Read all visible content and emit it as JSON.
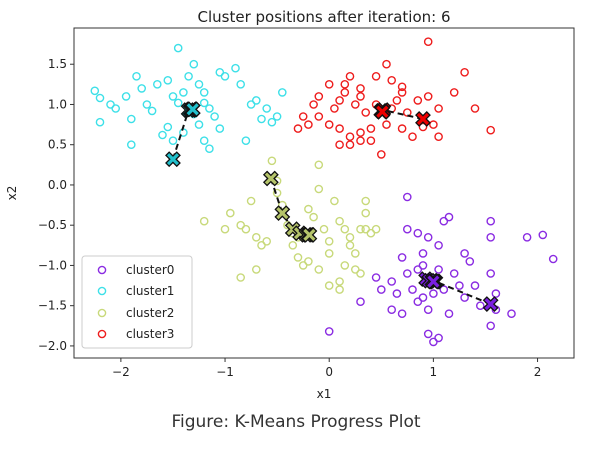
{
  "caption": "Figure: K-Means Progress Plot",
  "chart_data": {
    "type": "scatter",
    "title": "Cluster positions after iteration: 6",
    "xlabel": "x1",
    "ylabel": "x2",
    "xlim": [
      -2.45,
      2.35
    ],
    "ylim": [
      -2.15,
      1.95
    ],
    "xticks": [
      -2,
      -1,
      0,
      1,
      2
    ],
    "yticks": [
      -2.0,
      -1.5,
      -1.0,
      -0.5,
      0.0,
      0.5,
      1.0,
      1.5
    ],
    "xtick_labels": [
      "−2",
      "−1",
      "0",
      "1",
      "2"
    ],
    "ytick_labels": [
      "−2.0",
      "−1.5",
      "−1.0",
      "−0.5",
      "0.0",
      "0.5",
      "1.0",
      "1.5"
    ],
    "grid": false,
    "legend_position": "lower-left",
    "series": [
      {
        "name": "cluster0",
        "color": "#8a2be2",
        "center_fill": "#7a1fe0",
        "points": [
          [
            0.75,
            -0.55
          ],
          [
            0.85,
            -0.6
          ],
          [
            0.95,
            -0.65
          ],
          [
            1.15,
            -0.4
          ],
          [
            1.1,
            -0.45
          ],
          [
            1.55,
            -0.45
          ],
          [
            0.7,
            -0.9
          ],
          [
            0.9,
            -0.85
          ],
          [
            1.05,
            -0.75
          ],
          [
            1.3,
            -0.85
          ],
          [
            1.35,
            -0.95
          ],
          [
            1.55,
            -0.65
          ],
          [
            1.9,
            -0.65
          ],
          [
            2.05,
            -0.62
          ],
          [
            2.15,
            -0.92
          ],
          [
            0.45,
            -1.15
          ],
          [
            0.6,
            -1.2
          ],
          [
            0.75,
            -1.1
          ],
          [
            0.85,
            -1.05
          ],
          [
            0.9,
            -1.0
          ],
          [
            0.95,
            -1.15
          ],
          [
            1.05,
            -1.05
          ],
          [
            1.2,
            -1.1
          ],
          [
            1.25,
            -1.25
          ],
          [
            1.4,
            -1.25
          ],
          [
            1.55,
            -1.1
          ],
          [
            1.6,
            -1.35
          ],
          [
            0.5,
            -1.3
          ],
          [
            0.65,
            -1.35
          ],
          [
            0.8,
            -1.3
          ],
          [
            0.85,
            -1.45
          ],
          [
            0.9,
            -1.4
          ],
          [
            1.0,
            -1.35
          ],
          [
            1.1,
            -1.3
          ],
          [
            1.3,
            -1.4
          ],
          [
            1.45,
            -1.5
          ],
          [
            1.6,
            -1.55
          ],
          [
            1.75,
            -1.6
          ],
          [
            0.3,
            -1.45
          ],
          [
            0.6,
            -1.55
          ],
          [
            0.7,
            -1.6
          ],
          [
            0.95,
            -1.55
          ],
          [
            1.15,
            -1.6
          ],
          [
            1.55,
            -1.75
          ],
          [
            0.95,
            -1.85
          ],
          [
            1.05,
            -1.9
          ],
          [
            0.0,
            -1.82
          ],
          [
            0.75,
            -0.15
          ],
          [
            1.0,
            -1.95
          ]
        ],
        "centers": [
          [
            1.55,
            -1.48
          ],
          [
            1.02,
            -1.2
          ],
          [
            0.93,
            -1.17
          ],
          [
            0.96,
            -1.19
          ],
          [
            0.99,
            -1.19
          ],
          [
            1.01,
            -1.2
          ],
          [
            1.0,
            -1.2
          ]
        ]
      },
      {
        "name": "cluster1",
        "color": "#3de0e8",
        "center_fill": "#22c0cc",
        "points": [
          [
            -2.25,
            1.17
          ],
          [
            -2.2,
            1.08
          ],
          [
            -2.1,
            1.0
          ],
          [
            -2.2,
            0.78
          ],
          [
            -2.05,
            0.95
          ],
          [
            -1.95,
            1.1
          ],
          [
            -1.9,
            0.82
          ],
          [
            -1.85,
            1.35
          ],
          [
            -1.8,
            1.2
          ],
          [
            -1.75,
            1.0
          ],
          [
            -1.7,
            0.92
          ],
          [
            -1.65,
            1.25
          ],
          [
            -1.55,
            1.3
          ],
          [
            -1.5,
            1.1
          ],
          [
            -1.45,
            1.02
          ],
          [
            -1.4,
            1.15
          ],
          [
            -1.35,
            1.35
          ],
          [
            -1.45,
            1.7
          ],
          [
            -1.3,
            1.5
          ],
          [
            -1.25,
            1.25
          ],
          [
            -1.2,
            1.15
          ],
          [
            -1.15,
            0.95
          ],
          [
            -1.1,
            0.85
          ],
          [
            -1.05,
            1.4
          ],
          [
            -1.2,
            1.02
          ],
          [
            -1.3,
            0.88
          ],
          [
            -1.25,
            0.75
          ],
          [
            -1.4,
            0.65
          ],
          [
            -1.55,
            0.72
          ],
          [
            -1.6,
            0.62
          ],
          [
            -1.9,
            0.5
          ],
          [
            -1.5,
            0.55
          ],
          [
            -1.2,
            0.55
          ],
          [
            -1.15,
            0.45
          ],
          [
            -1.0,
            1.35
          ],
          [
            -0.9,
            1.45
          ],
          [
            -0.85,
            1.25
          ],
          [
            -0.75,
            1.0
          ],
          [
            -0.7,
            1.05
          ],
          [
            -0.65,
            0.82
          ],
          [
            -0.55,
            0.78
          ],
          [
            -0.45,
            1.15
          ],
          [
            -0.5,
            0.85
          ],
          [
            -0.6,
            0.95
          ],
          [
            -1.05,
            0.7
          ],
          [
            -0.8,
            0.55
          ]
        ],
        "centers": [
          [
            -1.5,
            0.32
          ],
          [
            -1.35,
            0.93
          ],
          [
            -1.33,
            0.93
          ],
          [
            -1.32,
            0.94
          ],
          [
            -1.32,
            0.94
          ],
          [
            -1.31,
            0.94
          ],
          [
            -1.31,
            0.94
          ]
        ]
      },
      {
        "name": "cluster2",
        "color": "#c8d97a",
        "center_fill": "#b5c46a",
        "points": [
          [
            -1.2,
            -0.45
          ],
          [
            -0.95,
            -0.35
          ],
          [
            -0.85,
            -0.5
          ],
          [
            -0.8,
            -0.55
          ],
          [
            -0.75,
            -0.2
          ],
          [
            -0.7,
            -0.65
          ],
          [
            -0.65,
            -0.75
          ],
          [
            -0.6,
            -0.7
          ],
          [
            -0.55,
            0.3
          ],
          [
            -0.5,
            0.05
          ],
          [
            -0.5,
            -0.1
          ],
          [
            -0.45,
            -0.25
          ],
          [
            -0.4,
            -0.5
          ],
          [
            -0.35,
            -0.6
          ],
          [
            -0.35,
            -0.75
          ],
          [
            -0.3,
            -0.9
          ],
          [
            -0.25,
            -1.0
          ],
          [
            -0.2,
            -0.3
          ],
          [
            -0.15,
            -0.4
          ],
          [
            -0.1,
            0.25
          ],
          [
            -0.1,
            -0.05
          ],
          [
            -0.05,
            -0.55
          ],
          [
            0.0,
            -0.7
          ],
          [
            0.0,
            -0.85
          ],
          [
            0.05,
            -0.2
          ],
          [
            0.1,
            -0.45
          ],
          [
            0.15,
            -0.55
          ],
          [
            0.2,
            -0.65
          ],
          [
            0.2,
            -0.75
          ],
          [
            0.25,
            -0.85
          ],
          [
            0.3,
            -0.55
          ],
          [
            0.35,
            -0.55
          ],
          [
            0.35,
            -0.35
          ],
          [
            0.4,
            -0.6
          ],
          [
            0.45,
            -0.55
          ],
          [
            0.25,
            -1.05
          ],
          [
            0.3,
            -1.1
          ],
          [
            0.15,
            -1.0
          ],
          [
            0.1,
            -1.3
          ],
          [
            0.1,
            -1.2
          ],
          [
            0.0,
            -1.25
          ],
          [
            -0.1,
            -1.05
          ],
          [
            -0.2,
            -0.95
          ],
          [
            -0.85,
            -1.15
          ],
          [
            -0.7,
            -1.05
          ],
          [
            -1.0,
            -0.55
          ],
          [
            -0.3,
            -0.65
          ],
          [
            0.35,
            -0.2
          ]
        ],
        "centers": [
          [
            -0.56,
            0.08
          ],
          [
            -0.45,
            -0.35
          ],
          [
            -0.35,
            -0.55
          ],
          [
            -0.28,
            -0.6
          ],
          [
            -0.22,
            -0.62
          ],
          [
            -0.2,
            -0.62
          ],
          [
            -0.19,
            -0.62
          ]
        ]
      },
      {
        "name": "cluster3",
        "color": "#ee1c1c",
        "center_fill": "#ee0000",
        "points": [
          [
            0.95,
            1.78
          ],
          [
            0.2,
            1.35
          ],
          [
            0.15,
            1.25
          ],
          [
            0.0,
            1.25
          ],
          [
            0.45,
            1.35
          ],
          [
            0.55,
            1.5
          ],
          [
            0.6,
            1.3
          ],
          [
            0.7,
            1.15
          ],
          [
            0.65,
            1.05
          ],
          [
            0.3,
            1.1
          ],
          [
            0.25,
            1.0
          ],
          [
            0.1,
            1.05
          ],
          [
            0.05,
            0.95
          ],
          [
            -0.15,
            1.0
          ],
          [
            -0.1,
            0.85
          ],
          [
            -0.2,
            0.75
          ],
          [
            -0.3,
            0.7
          ],
          [
            -0.25,
            0.85
          ],
          [
            -0.1,
            1.1
          ],
          [
            0.0,
            0.75
          ],
          [
            0.1,
            0.7
          ],
          [
            0.2,
            0.6
          ],
          [
            0.3,
            0.65
          ],
          [
            0.4,
            0.7
          ],
          [
            0.1,
            0.5
          ],
          [
            0.2,
            0.5
          ],
          [
            0.3,
            0.55
          ],
          [
            0.5,
            0.38
          ],
          [
            0.55,
            0.75
          ],
          [
            0.7,
            0.7
          ],
          [
            0.75,
            0.9
          ],
          [
            0.85,
            1.05
          ],
          [
            0.95,
            1.1
          ],
          [
            1.05,
            0.95
          ],
          [
            1.0,
            0.75
          ],
          [
            1.05,
            0.6
          ],
          [
            1.2,
            1.15
          ],
          [
            1.3,
            1.4
          ],
          [
            1.4,
            0.95
          ],
          [
            1.55,
            0.68
          ],
          [
            0.6,
            0.95
          ],
          [
            0.45,
            1.0
          ],
          [
            0.3,
            1.2
          ],
          [
            0.15,
            1.15
          ],
          [
            0.8,
            0.6
          ],
          [
            0.35,
            0.9
          ],
          [
            0.9,
            0.72
          ],
          [
            0.4,
            0.55
          ],
          [
            0.7,
            1.22
          ]
        ],
        "centers": [
          [
            0.9,
            0.82
          ],
          [
            0.52,
            0.93
          ],
          [
            0.5,
            0.92
          ],
          [
            0.5,
            0.92
          ],
          [
            0.51,
            0.91
          ],
          [
            0.51,
            0.91
          ],
          [
            0.51,
            0.91
          ]
        ]
      }
    ]
  }
}
